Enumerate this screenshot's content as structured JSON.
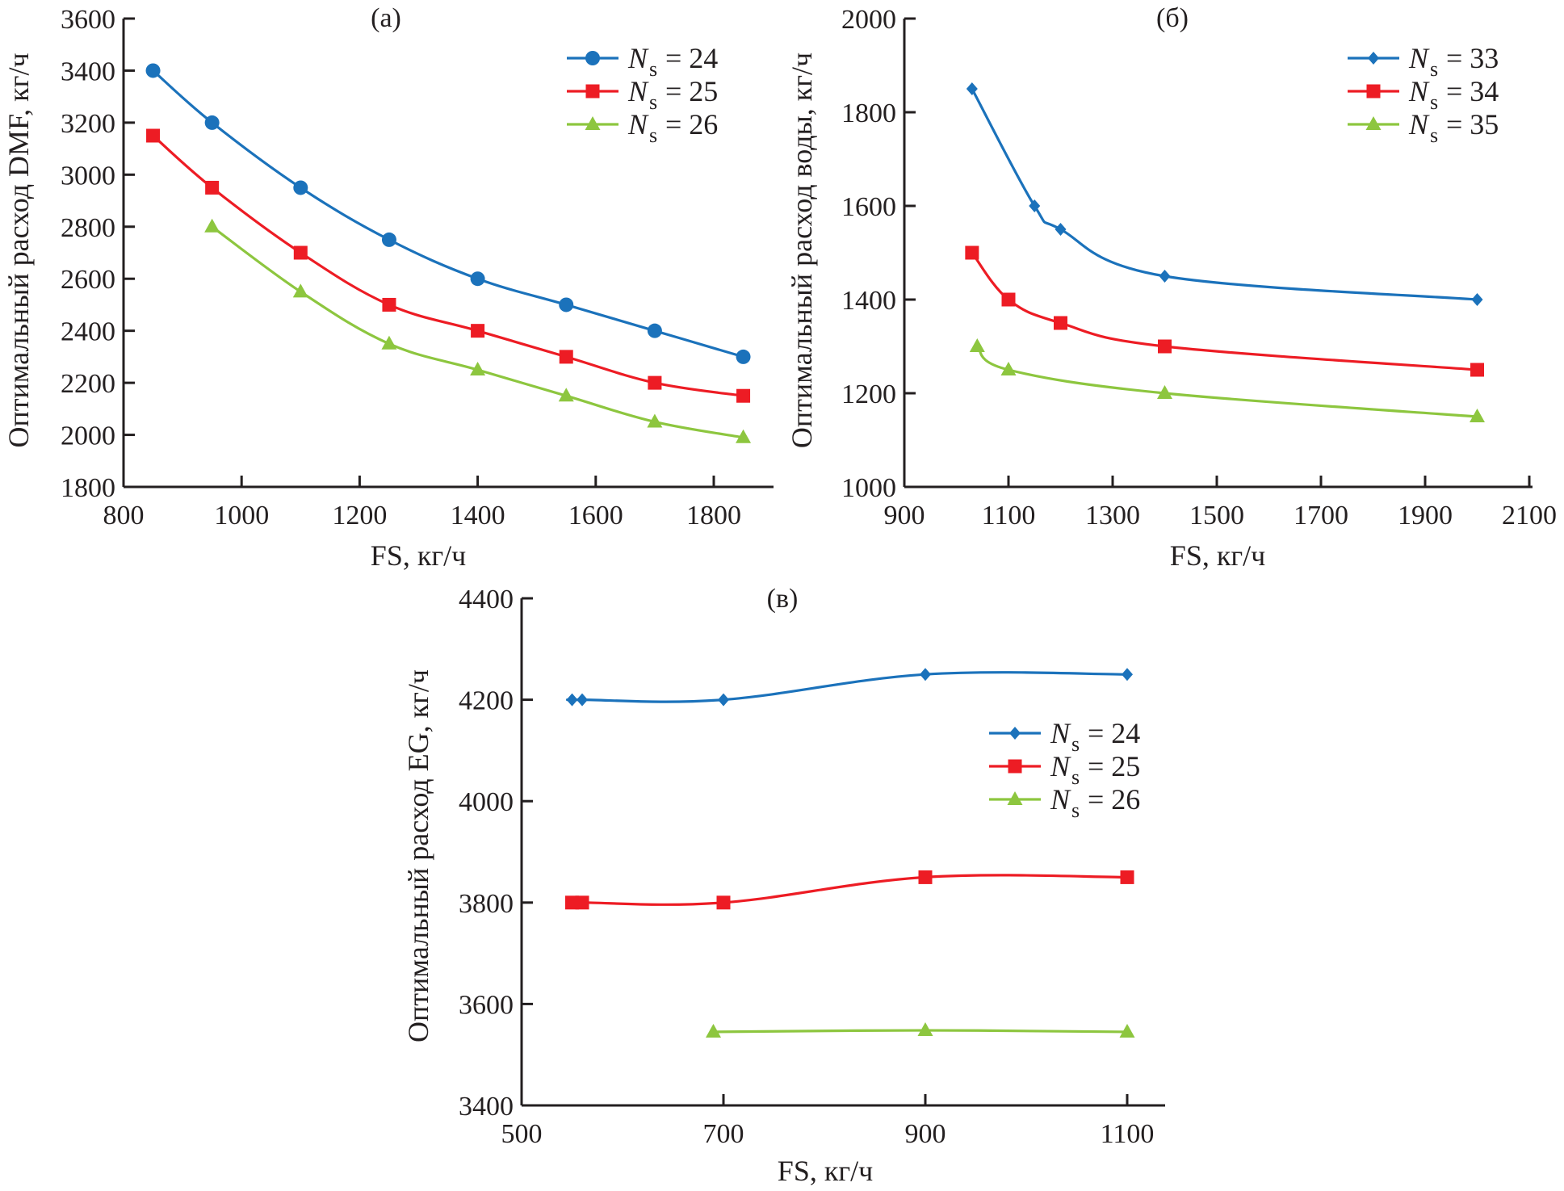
{
  "colors": {
    "blue": "#1b72bb",
    "red": "#ed1c24",
    "green": "#8dc63f",
    "axis": "#231f20"
  },
  "chart_data": [
    {
      "id": "a",
      "type": "line",
      "panel_label": "(a)",
      "title": "",
      "xlabel": "FS, кг/ч",
      "ylabel": "Оптимальный расход DMF, кг/ч",
      "xlim": [
        800,
        1850
      ],
      "ylim": [
        1800,
        3600
      ],
      "xticks": [
        800,
        1000,
        1200,
        1400,
        1600,
        1800
      ],
      "yticks": [
        1800,
        2000,
        2200,
        2400,
        2600,
        2800,
        3000,
        3200,
        3400,
        3600
      ],
      "grid": false,
      "legend_position": "top-right",
      "series": [
        {
          "name": "Ns = 24",
          "legend_symbol": "N",
          "legend_sub": "s",
          "legend_value": "= 24",
          "color": "blue",
          "marker": "circle",
          "x": [
            850,
            950,
            1100,
            1250,
            1400,
            1550,
            1700,
            1850
          ],
          "y": [
            3400,
            3200,
            2950,
            2750,
            2600,
            2500,
            2400,
            2300
          ]
        },
        {
          "name": "Ns = 25",
          "legend_symbol": "N",
          "legend_sub": "s",
          "legend_value": "= 25",
          "color": "red",
          "marker": "square",
          "x": [
            850,
            950,
            1100,
            1250,
            1400,
            1550,
            1700,
            1850
          ],
          "y": [
            3150,
            2950,
            2700,
            2500,
            2400,
            2300,
            2200,
            2150
          ]
        },
        {
          "name": "Ns = 26",
          "legend_symbol": "N",
          "legend_sub": "s",
          "legend_value": "= 26",
          "color": "green",
          "marker": "triangle",
          "x": [
            950,
            1100,
            1250,
            1400,
            1550,
            1700,
            1850
          ],
          "y": [
            2800,
            2550,
            2350,
            2250,
            2150,
            2050,
            1990
          ]
        }
      ]
    },
    {
      "id": "b",
      "type": "line",
      "panel_label": "(б)",
      "title": "",
      "xlabel": "FS, кг/ч",
      "ylabel": "Оптимальный расход воды, кг/ч",
      "xlim": [
        900,
        2100
      ],
      "ylim": [
        1000,
        2000
      ],
      "xticks": [
        900,
        1100,
        1300,
        1500,
        1700,
        1900,
        2100
      ],
      "yticks": [
        1000,
        1200,
        1400,
        1600,
        1800,
        2000
      ],
      "grid": false,
      "legend_position": "top-right",
      "series": [
        {
          "name": "Ns = 33",
          "legend_symbol": "N",
          "legend_sub": "s",
          "legend_value": "= 33",
          "color": "blue",
          "marker": "diamond",
          "x": [
            1030,
            1150,
            1200,
            1400,
            2000
          ],
          "y": [
            1850,
            1600,
            1550,
            1450,
            1400
          ]
        },
        {
          "name": "Ns = 34",
          "legend_symbol": "N",
          "legend_sub": "s",
          "legend_value": "= 34",
          "color": "red",
          "marker": "square",
          "x": [
            1030,
            1100,
            1200,
            1400,
            2000
          ],
          "y": [
            1500,
            1400,
            1350,
            1300,
            1250
          ]
        },
        {
          "name": "Ns = 35",
          "legend_symbol": "N",
          "legend_sub": "s",
          "legend_value": "= 35",
          "color": "green",
          "marker": "triangle",
          "x": [
            1040,
            1100,
            1400,
            2000
          ],
          "y": [
            1300,
            1250,
            1200,
            1150
          ]
        }
      ]
    },
    {
      "id": "v",
      "type": "line",
      "panel_label": "(в)",
      "title": "",
      "xlabel": "FS, кг/ч",
      "ylabel": "Оптимальный расход EG, кг/ч",
      "xlim": [
        500,
        1100
      ],
      "ylim": [
        3400,
        4400
      ],
      "xticks": [
        500,
        700,
        900,
        1100
      ],
      "yticks": [
        3400,
        3600,
        3800,
        4000,
        4200,
        4400
      ],
      "grid": false,
      "legend_position": "right",
      "series": [
        {
          "name": "Ns = 24",
          "legend_symbol": "N",
          "legend_sub": "s",
          "legend_value": "= 24",
          "color": "blue",
          "marker": "diamond",
          "x": [
            550,
            560,
            700,
            900,
            1100
          ],
          "y": [
            4200,
            4200,
            4200,
            4250,
            4250
          ]
        },
        {
          "name": "Ns = 25",
          "legend_symbol": "N",
          "legend_sub": "s",
          "legend_value": "= 25",
          "color": "red",
          "marker": "square",
          "x": [
            550,
            560,
            700,
            900,
            1100
          ],
          "y": [
            3800,
            3800,
            3800,
            3850,
            3850
          ]
        },
        {
          "name": "Ns = 26",
          "legend_symbol": "N",
          "legend_sub": "s",
          "legend_value": "= 26",
          "color": "green",
          "marker": "triangle",
          "x": [
            690,
            900,
            1100
          ],
          "y": [
            3545,
            3548,
            3545
          ]
        }
      ]
    }
  ]
}
